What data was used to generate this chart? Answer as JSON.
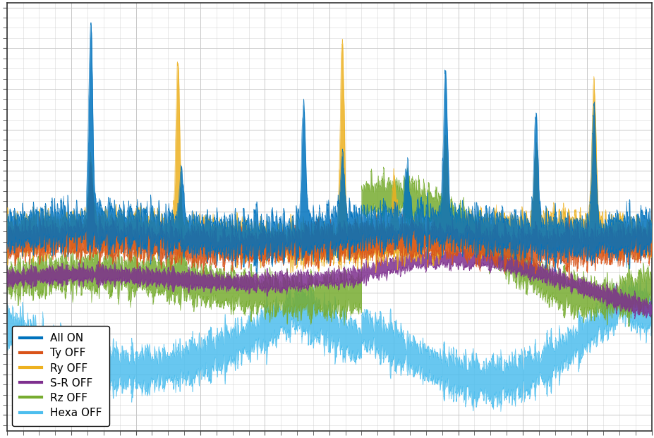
{
  "series": [
    {
      "label": "All ON",
      "color": "#0072BD",
      "lw": 0.8,
      "zorder": 6
    },
    {
      "label": "Ty OFF",
      "color": "#D95319",
      "lw": 0.8,
      "zorder": 5
    },
    {
      "label": "Ry OFF",
      "color": "#EDB120",
      "lw": 0.8,
      "zorder": 4
    },
    {
      "label": "S-R OFF",
      "color": "#7E2F8E",
      "lw": 0.8,
      "zorder": 3
    },
    {
      "label": "Rz OFF",
      "color": "#77AC30",
      "lw": 0.8,
      "zorder": 2
    },
    {
      "label": "Hexa OFF",
      "color": "#4DBEEE",
      "lw": 0.8,
      "zorder": 1
    }
  ],
  "background_color": "#ffffff",
  "grid_color": "#c8c8c8",
  "legend_loc": "lower left",
  "legend_fontsize": 11,
  "figsize": [
    9.28,
    6.21
  ],
  "dpi": 100,
  "n_points": 3000,
  "seed": 42,
  "fill_alpha": 0.85
}
